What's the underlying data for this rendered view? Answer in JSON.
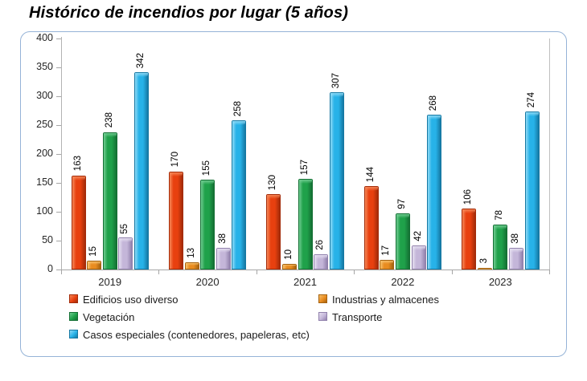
{
  "title": "Histórico de incendios por lugar (5 años)",
  "chart_data": {
    "type": "bar",
    "title": "Histórico de incendios por lugar (5 años)",
    "categories": [
      "2019",
      "2020",
      "2021",
      "2022",
      "2023"
    ],
    "series": [
      {
        "name": "Edificios uso diverso",
        "values": [
          163,
          170,
          130,
          144,
          106
        ],
        "color": "#E8400F",
        "color_light": "#F58757",
        "color_dark": "#A32B09"
      },
      {
        "name": "Industrias y almacenes",
        "values": [
          15,
          13,
          10,
          17,
          3
        ],
        "color": "#E98C20",
        "color_light": "#F6C06B",
        "color_dark": "#A5620F"
      },
      {
        "name": "Vegetación",
        "values": [
          238,
          155,
          157,
          97,
          78
        ],
        "color": "#1FA14A",
        "color_light": "#6FCB90",
        "color_dark": "#147034"
      },
      {
        "name": "Transporte",
        "values": [
          55,
          38,
          26,
          42,
          38
        ],
        "color": "#C4B6D9",
        "color_light": "#E5DFF0",
        "color_dark": "#9181AC"
      },
      {
        "name": "Casos especiales (contenedores, papeleras, etc)",
        "values": [
          342,
          258,
          307,
          268,
          274
        ],
        "color": "#27B2E8",
        "color_light": "#8FDAF6",
        "color_dark": "#1578A3"
      }
    ],
    "xlabel": "",
    "ylabel": "",
    "ylim": [
      0,
      400
    ],
    "yticks": [
      0,
      50,
      100,
      150,
      200,
      250,
      300,
      350,
      400
    ],
    "grid": false,
    "legend_position": "bottom",
    "legend_columns": 2,
    "data_labels": "vertical-rotated"
  },
  "colors": {
    "frame_border": "#95B3D7",
    "axis": "#A6A6A6",
    "tick_text": "#262626",
    "label_text": "#000000"
  }
}
